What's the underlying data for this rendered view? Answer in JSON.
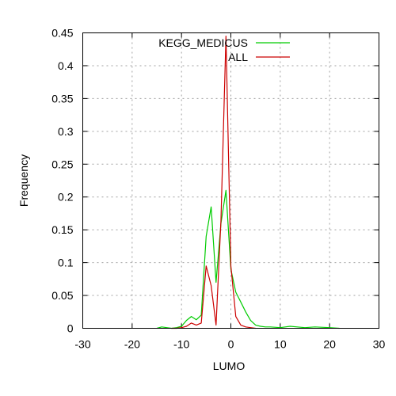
{
  "chart_data": {
    "type": "line",
    "xlabel": "LUMO",
    "ylabel": "Frequency",
    "xlim": [
      -30,
      30
    ],
    "ylim": [
      0,
      0.45
    ],
    "xticks": [
      -30,
      -20,
      -10,
      0,
      10,
      20,
      30
    ],
    "xtick_labels": [
      "-30",
      "-20",
      "-10",
      "0",
      "10",
      "20",
      "30"
    ],
    "yticks": [
      0,
      0.05,
      0.1,
      0.15,
      0.2,
      0.25,
      0.3,
      0.35,
      0.4,
      0.45
    ],
    "ytick_labels": [
      "0",
      "0.05",
      "0.1",
      "0.15",
      "0.2",
      "0.25",
      "0.3",
      "0.35",
      "0.4",
      "0.45"
    ],
    "grid": true,
    "legend_position": "top-right",
    "series": [
      {
        "name": "KEGG_MEDICUS",
        "color": "#00cc00",
        "x": [
          -15,
          -14,
          -13,
          -12,
          -11,
          -10,
          -9,
          -8,
          -7,
          -6,
          -5,
          -4,
          -3,
          -2,
          -1,
          0,
          1,
          2,
          3,
          4,
          5,
          6,
          7,
          8,
          10,
          12,
          15,
          17,
          20,
          22
        ],
        "y": [
          0,
          0.002,
          0.001,
          0.0,
          0.001,
          0.003,
          0.012,
          0.018,
          0.013,
          0.02,
          0.14,
          0.185,
          0.07,
          0.16,
          0.21,
          0.09,
          0.055,
          0.04,
          0.025,
          0.012,
          0.005,
          0.003,
          0.002,
          0.002,
          0.001,
          0.003,
          0.001,
          0.002,
          0.001,
          0.0
        ]
      },
      {
        "name": "ALL",
        "color": "#cc0000",
        "x": [
          -12,
          -11,
          -10,
          -9,
          -8,
          -7,
          -6,
          -5,
          -4,
          -3,
          -2,
          -1,
          0,
          1,
          2,
          3,
          4,
          5
        ],
        "y": [
          0,
          0.0,
          0.001,
          0.003,
          0.008,
          0.005,
          0.008,
          0.095,
          0.065,
          0.005,
          0.165,
          0.445,
          0.095,
          0.018,
          0.005,
          0.002,
          0.001,
          0.0
        ]
      }
    ]
  }
}
